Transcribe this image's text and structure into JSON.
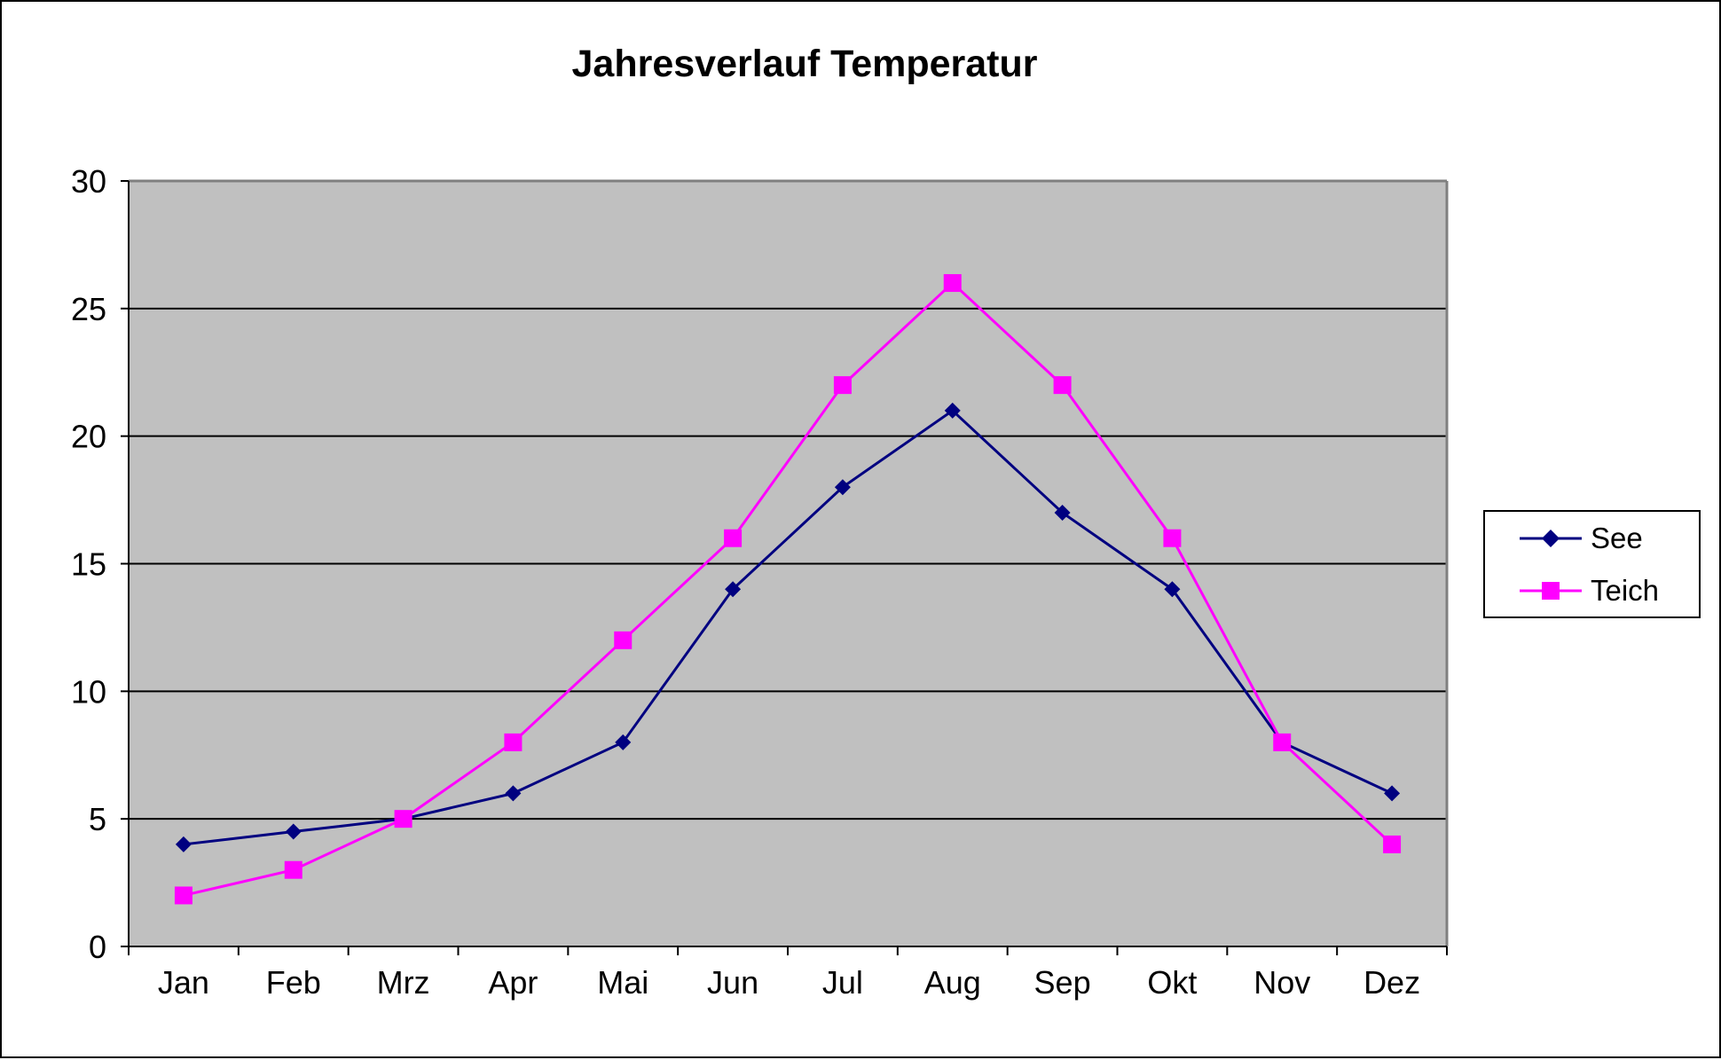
{
  "chart_data": {
    "type": "line",
    "title": "Jahresverlauf Temperatur",
    "xlabel": "",
    "ylabel": "",
    "categories": [
      "Jan",
      "Feb",
      "Mrz",
      "Apr",
      "Mai",
      "Jun",
      "Jul",
      "Aug",
      "Sep",
      "Okt",
      "Nov",
      "Dez"
    ],
    "ylim": [
      0,
      30
    ],
    "yticks": [
      0,
      5,
      10,
      15,
      20,
      25,
      30
    ],
    "grid": true,
    "legend_position": "right",
    "plot_background": "#c0c0c0",
    "series": [
      {
        "name": "See",
        "color": "#000080",
        "marker": "diamond",
        "values": [
          4,
          4.5,
          5,
          6,
          8,
          14,
          18,
          21,
          17,
          14,
          8,
          6
        ]
      },
      {
        "name": "Teich",
        "color": "#ff00ff",
        "marker": "square",
        "values": [
          2,
          3,
          5,
          8,
          12,
          16,
          22,
          26,
          22,
          16,
          8,
          4
        ]
      }
    ]
  }
}
